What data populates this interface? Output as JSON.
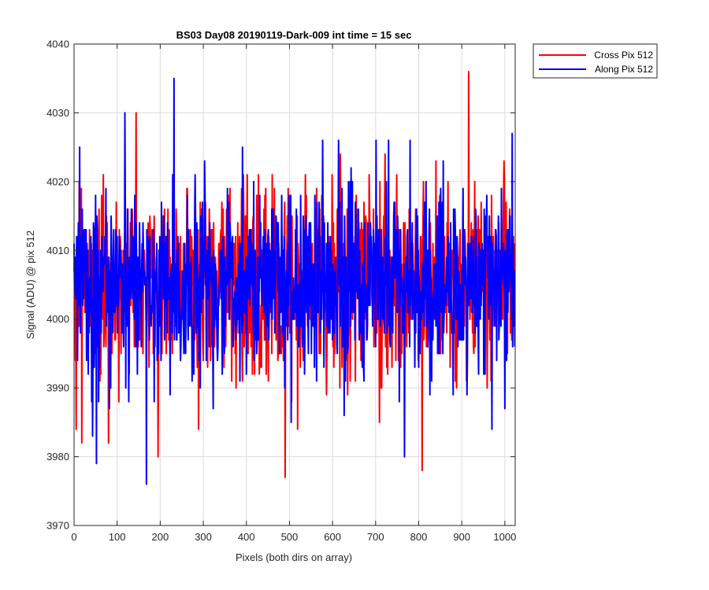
{
  "chart_data": {
    "type": "line",
    "title": "BS03 Day08 20190119-Dark-009 int time = 15 sec",
    "xlabel": "Pixels (both dirs on array)",
    "ylabel": "Signal (ADU) @ pix 512",
    "xlim": [
      0,
      1024
    ],
    "ylim": [
      3970,
      4040
    ],
    "xticks": [
      0,
      100,
      200,
      300,
      400,
      500,
      600,
      700,
      800,
      900,
      1000
    ],
    "yticks": [
      3970,
      3980,
      3990,
      4000,
      4010,
      4020,
      4030,
      4040
    ],
    "grid": true,
    "legend_position": "outside-top-right",
    "noise_model": {
      "n_points": 1024,
      "mean": 4005,
      "std": 7
    },
    "series": [
      {
        "name": "Cross Pix 512",
        "color": "#ff0000",
        "seed": 17,
        "extremes": [
          [
            144,
            4030
          ],
          [
            490,
            3977
          ],
          [
            808,
            3978
          ],
          [
            916,
            4036
          ],
          [
            195,
            3980
          ],
          [
            5,
            3984
          ],
          [
            18,
            3982
          ],
          [
            80,
            3982
          ]
        ]
      },
      {
        "name": "Along Pix 512",
        "color": "#0000ff",
        "seed": 91,
        "extremes": [
          [
            232,
            4035
          ],
          [
            118,
            4030
          ],
          [
            168,
            3976
          ],
          [
            52,
            3979
          ],
          [
            767,
            3980
          ],
          [
            1017,
            4027
          ],
          [
            13,
            4025
          ],
          [
            730,
            4026
          ],
          [
            780,
            4026
          ],
          [
            43,
            3983
          ]
        ]
      }
    ]
  }
}
